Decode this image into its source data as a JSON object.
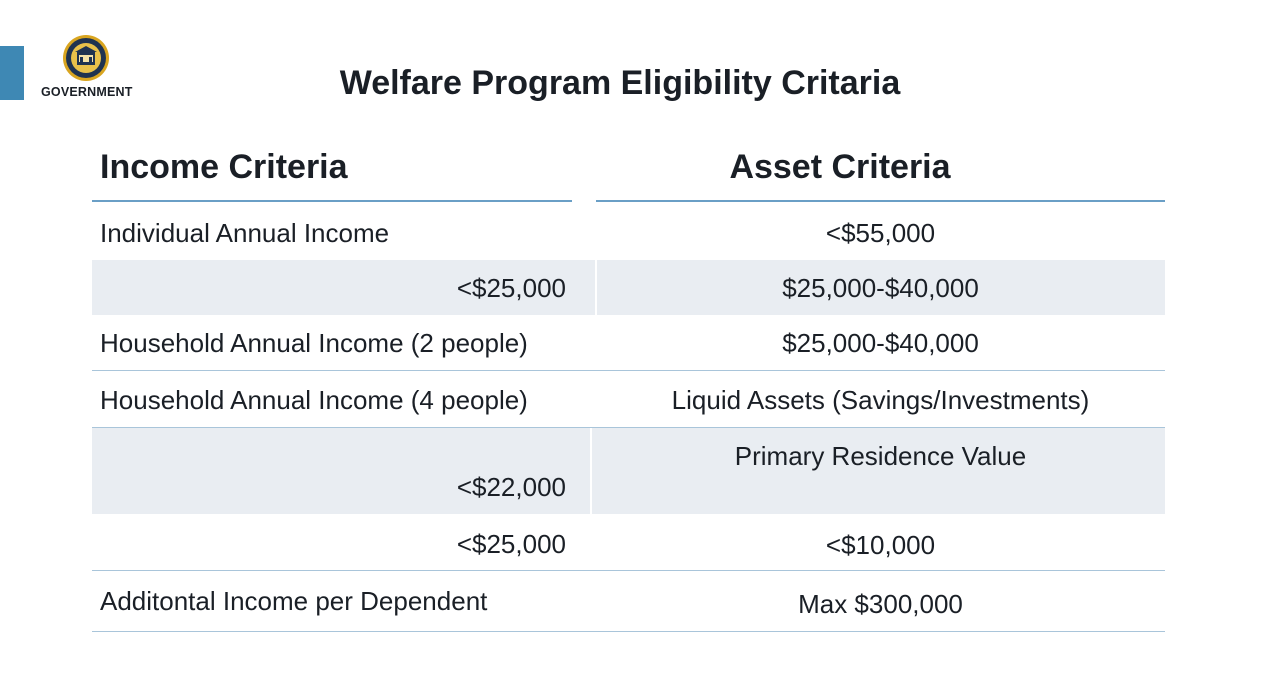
{
  "header": {
    "org_label": "GOVERNMENT",
    "title": "Welfare Program Eligibility Critaria"
  },
  "columns": {
    "income_heading": "Income Criteria",
    "asset_heading": "Asset Criteria"
  },
  "rows": [
    {
      "income": "Individual Annual Income",
      "asset": "<$55,000"
    },
    {
      "income": "<$25,000",
      "asset": "$25,000-$40,000"
    },
    {
      "income": "Household Annual Income (2 people)",
      "asset": "$25,000-$40,000"
    },
    {
      "income": "Household Annual Income (4 people)",
      "asset": "Liquid Assets (Savings/Investments)"
    },
    {
      "income": "<$22,000",
      "asset": "Primary Residence Value"
    },
    {
      "income": "<$25,000",
      "asset": "<$10,000"
    },
    {
      "income": "Additontal Income per Dependent",
      "asset": "Max $300,000"
    }
  ],
  "colors": {
    "accent": "#3e88b4",
    "rule": "#6a9fc6",
    "shade": "#e9edf2",
    "seal_gold": "#d9a520",
    "seal_navy": "#1f3350"
  }
}
